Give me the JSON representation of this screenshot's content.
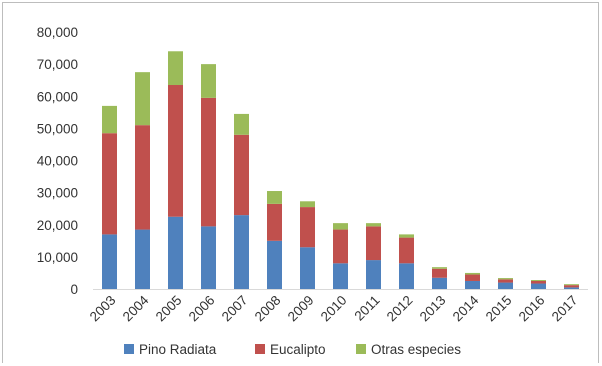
{
  "chart_data": {
    "type": "bar",
    "stacked": true,
    "categories": [
      "2003",
      "2004",
      "2005",
      "2006",
      "2007",
      "2008",
      "2009",
      "2010",
      "2011",
      "2012",
      "2013",
      "2014",
      "2015",
      "2016",
      "2017"
    ],
    "series": [
      {
        "name": "Pino Radiata",
        "color": "#4f81bd",
        "values": [
          17000,
          18500,
          22500,
          19500,
          23000,
          15000,
          13000,
          8000,
          9000,
          8000,
          3500,
          2500,
          2000,
          1700,
          500
        ]
      },
      {
        "name": "Eucalipto",
        "color": "#c0504d",
        "values": [
          31500,
          32500,
          41000,
          40000,
          25000,
          11500,
          12500,
          10500,
          10500,
          8000,
          2800,
          2000,
          1000,
          800,
          700
        ]
      },
      {
        "name": "Otras especies",
        "color": "#9bbb59",
        "values": [
          8500,
          16500,
          10500,
          10500,
          6500,
          4000,
          1800,
          2000,
          1000,
          1000,
          500,
          500,
          400,
          300,
          300
        ]
      }
    ],
    "ylim": [
      0,
      80000
    ],
    "yticks": [
      "0",
      "10,000",
      "20,000",
      "30,000",
      "40,000",
      "50,000",
      "60,000",
      "70,000",
      "80,000"
    ],
    "grid": false,
    "legend_position": "bottom",
    "title": "",
    "xlabel": "",
    "ylabel": ""
  }
}
